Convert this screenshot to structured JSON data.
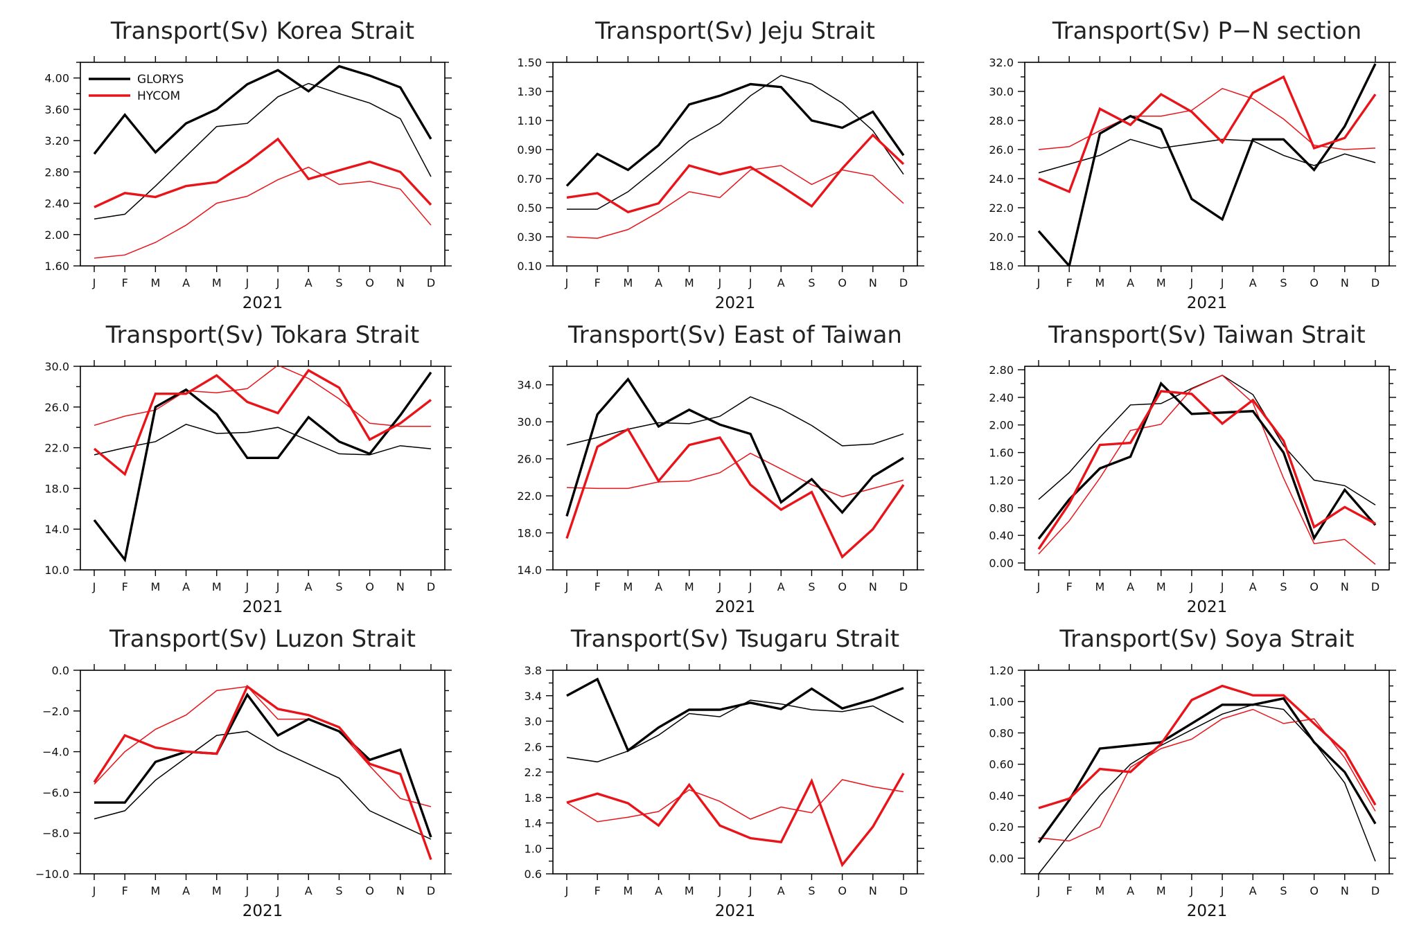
{
  "colors": {
    "glorys": "#000000",
    "hycom": "#e8141a"
  },
  "legend": {
    "entries": [
      "GLORYS",
      "HYCOM"
    ]
  },
  "chart_data": [
    {
      "type": "line",
      "title": "Transport(Sv) Korea Strait",
      "xlabel": "2021",
      "categories": [
        "J",
        "F",
        "M",
        "A",
        "M",
        "J",
        "J",
        "A",
        "S",
        "O",
        "N",
        "D"
      ],
      "yticks": [
        "1.60",
        "2.00",
        "2.40",
        "2.80",
        "3.20",
        "3.60",
        "4.00"
      ],
      "ylim": [
        1.6,
        4.2
      ],
      "series": [
        {
          "name": "GLORYS",
          "style": "thick",
          "values": [
            3.03,
            3.53,
            3.05,
            3.42,
            3.6,
            3.92,
            4.1,
            3.83,
            4.15,
            4.03,
            3.88,
            3.22
          ]
        },
        {
          "name": "GLORYS",
          "style": "thin",
          "values": [
            2.2,
            2.26,
            2.62,
            3.0,
            3.38,
            3.42,
            3.76,
            3.93,
            3.8,
            3.68,
            3.48,
            2.74
          ]
        },
        {
          "name": "HYCOM",
          "style": "thick",
          "values": [
            2.35,
            2.53,
            2.48,
            2.62,
            2.67,
            2.92,
            3.22,
            2.71,
            2.82,
            2.93,
            2.8,
            2.38
          ]
        },
        {
          "name": "HYCOM",
          "style": "thin",
          "values": [
            1.7,
            1.74,
            1.9,
            2.12,
            2.4,
            2.49,
            2.7,
            2.86,
            2.64,
            2.68,
            2.58,
            2.12
          ]
        }
      ]
    },
    {
      "type": "line",
      "title": "Transport(Sv) Jeju Strait",
      "xlabel": "2021",
      "categories": [
        "J",
        "F",
        "M",
        "A",
        "M",
        "J",
        "J",
        "A",
        "S",
        "O",
        "N",
        "D"
      ],
      "yticks": [
        "0.10",
        "0.30",
        "0.50",
        "0.70",
        "0.90",
        "1.10",
        "1.30",
        "1.50"
      ],
      "ylim": [
        0.1,
        1.5
      ],
      "series": [
        {
          "name": "GLORYS",
          "style": "thick",
          "values": [
            0.65,
            0.87,
            0.76,
            0.93,
            1.21,
            1.27,
            1.35,
            1.33,
            1.1,
            1.05,
            1.16,
            0.86
          ]
        },
        {
          "name": "GLORYS",
          "style": "thin",
          "values": [
            0.49,
            0.49,
            0.61,
            0.78,
            0.96,
            1.08,
            1.27,
            1.41,
            1.35,
            1.22,
            1.03,
            0.73
          ]
        },
        {
          "name": "HYCOM",
          "style": "thick",
          "values": [
            0.57,
            0.6,
            0.47,
            0.53,
            0.79,
            0.73,
            0.78,
            0.65,
            0.51,
            0.77,
            1.0,
            0.8
          ]
        },
        {
          "name": "HYCOM",
          "style": "thin",
          "values": [
            0.3,
            0.29,
            0.35,
            0.47,
            0.61,
            0.57,
            0.76,
            0.79,
            0.66,
            0.76,
            0.72,
            0.53
          ]
        }
      ]
    },
    {
      "type": "line",
      "title": "Transport(Sv) P−N section",
      "xlabel": "2021",
      "categories": [
        "J",
        "F",
        "M",
        "A",
        "M",
        "J",
        "J",
        "A",
        "S",
        "O",
        "N",
        "D"
      ],
      "yticks": [
        "18.0",
        "20.0",
        "22.0",
        "24.0",
        "26.0",
        "28.0",
        "30.0",
        "32.0"
      ],
      "ylim": [
        18.0,
        32.0
      ],
      "series": [
        {
          "name": "GLORYS",
          "style": "thick",
          "values": [
            20.4,
            18.0,
            27.1,
            28.3,
            27.4,
            22.6,
            21.2,
            26.7,
            26.7,
            24.6,
            27.6,
            31.9
          ]
        },
        {
          "name": "GLORYS",
          "style": "thin",
          "values": [
            24.4,
            25.0,
            25.6,
            26.7,
            26.1,
            26.4,
            26.7,
            26.6,
            25.6,
            24.9,
            25.7,
            25.1
          ]
        },
        {
          "name": "HYCOM",
          "style": "thick",
          "values": [
            24.0,
            23.1,
            28.8,
            27.7,
            29.8,
            28.6,
            26.5,
            29.9,
            31.0,
            26.1,
            26.8,
            29.8
          ]
        },
        {
          "name": "HYCOM",
          "style": "thin",
          "values": [
            26.0,
            26.2,
            27.3,
            28.3,
            28.3,
            28.7,
            30.2,
            29.5,
            28.1,
            26.3,
            26.0,
            26.1
          ]
        }
      ]
    },
    {
      "type": "line",
      "title": "Transport(Sv) Tokara Strait",
      "xlabel": "2021",
      "categories": [
        "J",
        "F",
        "M",
        "A",
        "M",
        "J",
        "J",
        "A",
        "S",
        "O",
        "N",
        "D"
      ],
      "yticks": [
        "10.0",
        "14.0",
        "18.0",
        "22.0",
        "26.0",
        "30.0"
      ],
      "ylim": [
        10.0,
        30.0
      ],
      "series": [
        {
          "name": "GLORYS",
          "style": "thick",
          "values": [
            14.9,
            11.0,
            26.0,
            27.7,
            25.3,
            21.0,
            21.0,
            25.0,
            22.6,
            21.4,
            25.2,
            29.4
          ]
        },
        {
          "name": "GLORYS",
          "style": "thin",
          "values": [
            21.3,
            22.0,
            22.6,
            24.3,
            23.4,
            23.5,
            24.0,
            22.7,
            21.4,
            21.3,
            22.2,
            21.9
          ]
        },
        {
          "name": "HYCOM",
          "style": "thick",
          "values": [
            21.9,
            19.4,
            27.3,
            27.3,
            29.1,
            26.5,
            25.4,
            29.6,
            27.9,
            22.8,
            24.4,
            26.7
          ]
        },
        {
          "name": "HYCOM",
          "style": "thin",
          "values": [
            24.2,
            25.1,
            25.7,
            27.6,
            27.4,
            27.8,
            30.1,
            28.8,
            26.8,
            24.4,
            24.1,
            24.1
          ]
        }
      ]
    },
    {
      "type": "line",
      "title": "Transport(Sv) East of Taiwan",
      "xlabel": "2021",
      "categories": [
        "J",
        "F",
        "M",
        "A",
        "M",
        "J",
        "J",
        "A",
        "S",
        "O",
        "N",
        "D"
      ],
      "yticks": [
        "14.0",
        "18.0",
        "22.0",
        "26.0",
        "30.0",
        "34.0"
      ],
      "ylim": [
        14.0,
        36.0
      ],
      "series": [
        {
          "name": "GLORYS",
          "style": "thick",
          "values": [
            19.8,
            30.8,
            34.6,
            29.5,
            31.3,
            29.7,
            28.7,
            21.3,
            23.8,
            20.2,
            24.1,
            26.1
          ]
        },
        {
          "name": "GLORYS",
          "style": "thin",
          "values": [
            27.5,
            28.3,
            29.2,
            29.9,
            29.8,
            30.6,
            32.7,
            31.4,
            29.6,
            27.4,
            27.6,
            28.7
          ]
        },
        {
          "name": "HYCOM",
          "style": "thick",
          "values": [
            17.4,
            27.3,
            29.2,
            23.6,
            27.5,
            28.3,
            23.2,
            20.5,
            22.4,
            15.4,
            18.4,
            23.2
          ]
        },
        {
          "name": "HYCOM",
          "style": "thin",
          "values": [
            22.9,
            22.8,
            22.8,
            23.5,
            23.6,
            24.5,
            26.6,
            24.9,
            23.2,
            21.9,
            22.8,
            23.7
          ]
        }
      ]
    },
    {
      "type": "line",
      "title": "Transport(Sv) Taiwan Strait",
      "xlabel": "2021",
      "categories": [
        "J",
        "F",
        "M",
        "A",
        "M",
        "J",
        "J",
        "A",
        "S",
        "O",
        "N",
        "D"
      ],
      "yticks": [
        "0.00",
        "0.40",
        "0.80",
        "1.20",
        "1.60",
        "2.00",
        "2.40",
        "2.80"
      ],
      "ylim": [
        -0.1,
        2.85
      ],
      "series": [
        {
          "name": "GLORYS",
          "style": "thick",
          "values": [
            0.35,
            0.92,
            1.37,
            1.54,
            2.6,
            2.16,
            2.18,
            2.2,
            1.6,
            0.36,
            1.06,
            0.55
          ]
        },
        {
          "name": "GLORYS",
          "style": "thin",
          "values": [
            0.92,
            1.31,
            1.82,
            2.29,
            2.31,
            2.53,
            2.72,
            2.44,
            1.7,
            1.2,
            1.12,
            0.84
          ]
        },
        {
          "name": "HYCOM",
          "style": "thick",
          "values": [
            0.2,
            0.86,
            1.71,
            1.74,
            2.49,
            2.45,
            2.02,
            2.36,
            1.77,
            0.52,
            0.81,
            0.57
          ]
        },
        {
          "name": "HYCOM",
          "style": "thin",
          "values": [
            0.13,
            0.61,
            1.23,
            1.92,
            2.01,
            2.52,
            2.72,
            2.32,
            1.23,
            0.28,
            0.34,
            -0.02
          ]
        }
      ]
    },
    {
      "type": "line",
      "title": "Transport(Sv) Luzon Strait",
      "xlabel": "2021",
      "categories": [
        "J",
        "F",
        "M",
        "A",
        "M",
        "J",
        "J",
        "A",
        "S",
        "O",
        "N",
        "D"
      ],
      "yticks": [
        "−10.0",
        "−8.0",
        "−6.0",
        "−4.0",
        "−2.0",
        "0.0"
      ],
      "ylim": [
        -10.0,
        0.0
      ],
      "series": [
        {
          "name": "GLORYS",
          "style": "thick",
          "values": [
            -6.5,
            -6.5,
            -4.5,
            -4.0,
            -4.1,
            -1.2,
            -3.2,
            -2.4,
            -3.0,
            -4.4,
            -3.9,
            -8.2
          ]
        },
        {
          "name": "GLORYS",
          "style": "thin",
          "values": [
            -7.3,
            -6.9,
            -5.4,
            -4.3,
            -3.2,
            -3.0,
            -3.9,
            -4.6,
            -5.3,
            -6.9,
            -7.6,
            -8.3
          ]
        },
        {
          "name": "HYCOM",
          "style": "thick",
          "values": [
            -5.5,
            -3.2,
            -3.8,
            -4.0,
            -4.1,
            -0.8,
            -1.9,
            -2.2,
            -2.8,
            -4.6,
            -5.1,
            -9.3
          ]
        },
        {
          "name": "HYCOM",
          "style": "thin",
          "values": [
            -5.6,
            -4.0,
            -2.9,
            -2.2,
            -1.0,
            -0.8,
            -2.4,
            -2.4,
            -3.0,
            -4.7,
            -6.3,
            -6.7
          ]
        }
      ]
    },
    {
      "type": "line",
      "title": "Transport(Sv) Tsugaru Strait",
      "xlabel": "2021",
      "categories": [
        "J",
        "F",
        "M",
        "A",
        "M",
        "J",
        "J",
        "A",
        "S",
        "O",
        "N",
        "D"
      ],
      "yticks": [
        "0.6",
        "1.0",
        "1.4",
        "1.8",
        "2.2",
        "2.6",
        "3.0",
        "3.4",
        "3.8"
      ],
      "ylim": [
        0.6,
        3.8
      ],
      "series": [
        {
          "name": "GLORYS",
          "style": "thick",
          "values": [
            3.4,
            3.66,
            2.54,
            2.9,
            3.18,
            3.18,
            3.29,
            3.19,
            3.51,
            3.2,
            3.34,
            3.52
          ]
        },
        {
          "name": "GLORYS",
          "style": "thin",
          "values": [
            2.43,
            2.36,
            2.53,
            2.78,
            3.12,
            3.07,
            3.33,
            3.27,
            3.18,
            3.15,
            3.24,
            2.98
          ]
        },
        {
          "name": "HYCOM",
          "style": "thick",
          "values": [
            1.72,
            1.86,
            1.71,
            1.36,
            2.0,
            1.36,
            1.16,
            1.1,
            2.06,
            0.74,
            1.34,
            2.18
          ]
        },
        {
          "name": "HYCOM",
          "style": "thin",
          "values": [
            1.72,
            1.42,
            1.49,
            1.58,
            1.92,
            1.74,
            1.46,
            1.65,
            1.56,
            2.08,
            1.97,
            1.89
          ]
        }
      ]
    },
    {
      "type": "line",
      "title": "Transport(Sv) Soya Strait",
      "xlabel": "2021",
      "categories": [
        "J",
        "F",
        "M",
        "A",
        "M",
        "J",
        "J",
        "A",
        "S",
        "O",
        "N",
        "D"
      ],
      "yticks": [
        "0.00",
        "0.20",
        "0.40",
        "0.60",
        "0.80",
        "1.00",
        "1.20"
      ],
      "ylim": [
        -0.1,
        1.2
      ],
      "series": [
        {
          "name": "GLORYS",
          "style": "thick",
          "values": [
            0.1,
            0.37,
            0.7,
            0.72,
            0.74,
            0.86,
            0.98,
            0.98,
            1.02,
            0.74,
            0.55,
            0.22
          ]
        },
        {
          "name": "GLORYS",
          "style": "thin",
          "values": [
            -0.1,
            0.15,
            0.4,
            0.6,
            0.72,
            0.82,
            0.92,
            0.98,
            0.95,
            0.74,
            0.48,
            -0.02
          ]
        },
        {
          "name": "HYCOM",
          "style": "thick",
          "values": [
            0.32,
            0.38,
            0.57,
            0.55,
            0.73,
            1.01,
            1.1,
            1.04,
            1.04,
            0.86,
            0.68,
            0.34
          ]
        },
        {
          "name": "HYCOM",
          "style": "thin",
          "values": [
            0.13,
            0.11,
            0.2,
            0.58,
            0.7,
            0.76,
            0.89,
            0.95,
            0.86,
            0.89,
            0.64,
            0.3
          ]
        }
      ]
    }
  ]
}
